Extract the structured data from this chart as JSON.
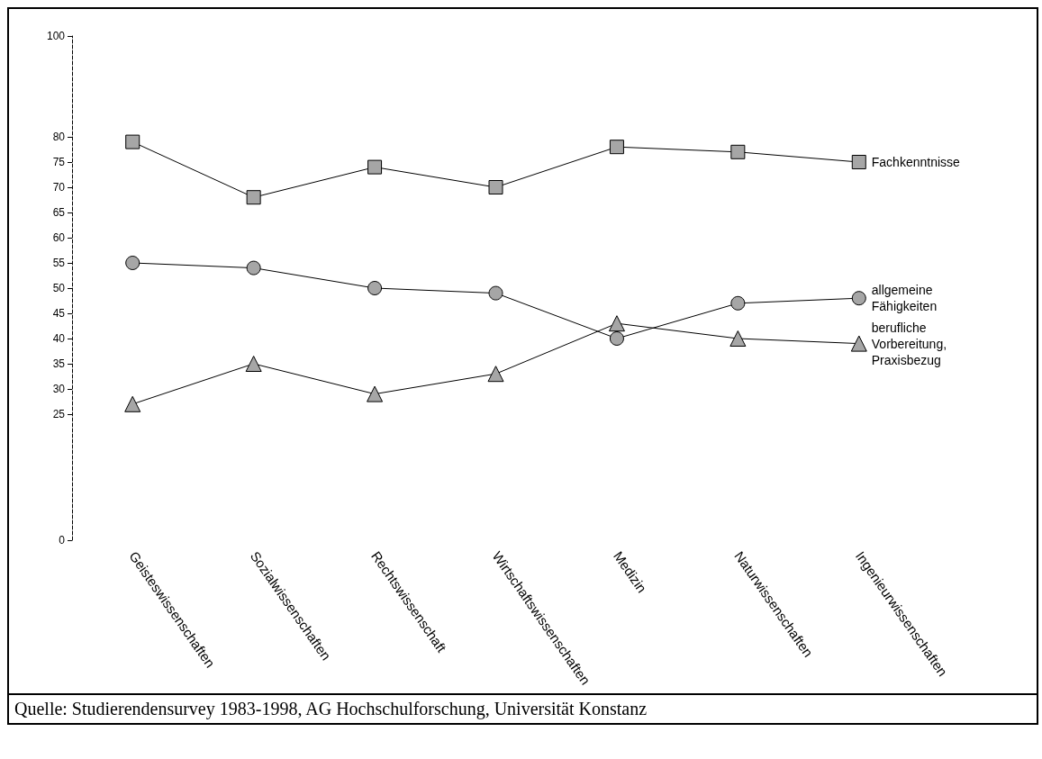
{
  "chart_data": {
    "type": "line",
    "categories": [
      "Geisteswissenschaften",
      "Sozialwissenschaften",
      "Rechtswissenschaft",
      "Wirtschaftswissenschaften",
      "Medizin",
      "Naturwissenschaften",
      "Ingenieurwissenschaften"
    ],
    "series": [
      {
        "name": "Fachkenntnisse",
        "color": "#000000",
        "marker": "square",
        "values": [
          79,
          68,
          74,
          70,
          78,
          77,
          75
        ]
      },
      {
        "name": "allgemeine Fähigkeiten",
        "color": "#000000",
        "marker": "circle",
        "values": [
          55,
          54,
          50,
          49,
          40,
          47,
          48
        ]
      },
      {
        "name": "berufliche Vorbereitung, Praxisbezug",
        "color": "#000000",
        "marker": "triangle",
        "values": [
          27,
          35,
          29,
          33,
          43,
          40,
          39
        ]
      }
    ],
    "ylim": [
      0,
      100
    ],
    "yticks": [
      0,
      25,
      30,
      35,
      40,
      45,
      50,
      55,
      60,
      65,
      70,
      75,
      80,
      100
    ],
    "grid": false,
    "legend": false,
    "annotations": [
      "Quelle:  Studierendensurvey 1983-1998, AG Hochschulforschung, Universität Konstanz"
    ]
  }
}
